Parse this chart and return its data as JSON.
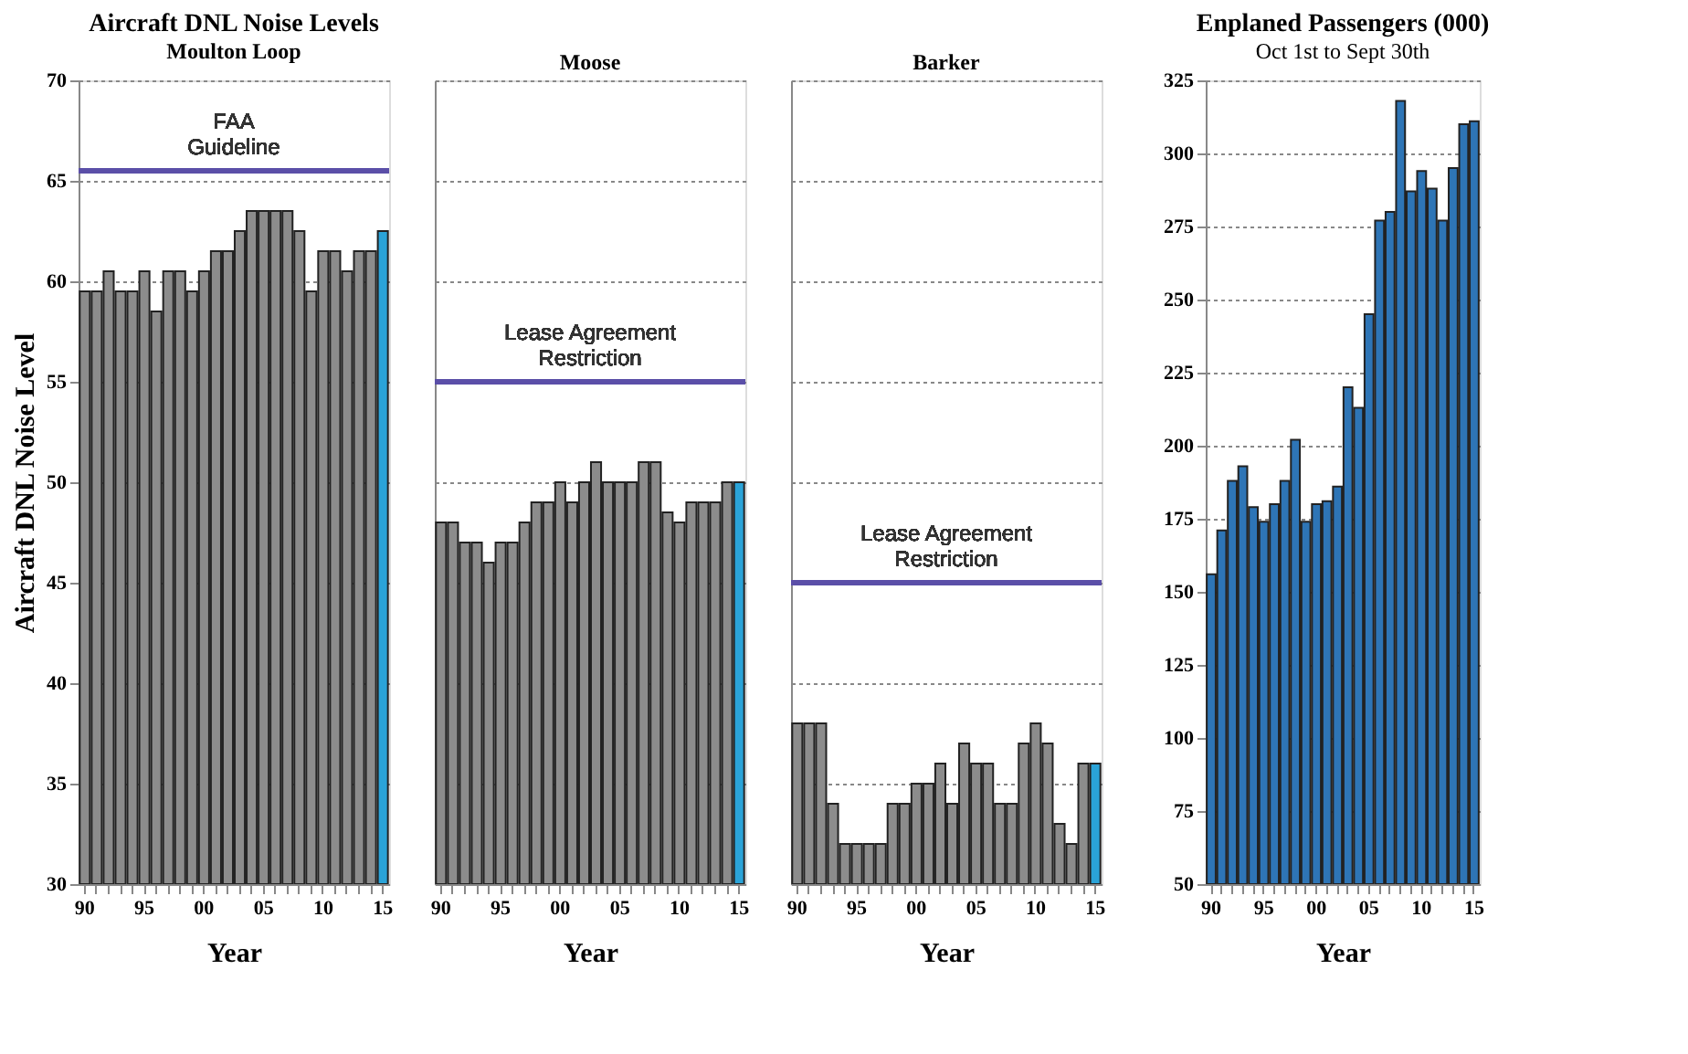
{
  "chart_data": [
    {
      "type": "bar",
      "title": "Aircraft DNL Noise Levels",
      "subtitle": "Moulton Loop",
      "xlabel": "Year",
      "ylabel": "Aircraft DNL Noise Level",
      "categories": [
        "90",
        null,
        null,
        null,
        null,
        "95",
        null,
        null,
        null,
        null,
        "00",
        null,
        null,
        null,
        null,
        "05",
        null,
        null,
        null,
        null,
        "10",
        null,
        null,
        null,
        null,
        "15"
      ],
      "values": [
        59.5,
        59.5,
        60.5,
        59.5,
        59.5,
        60.5,
        58.5,
        60.5,
        60.5,
        59.5,
        60.5,
        61.5,
        61.5,
        62.5,
        63.5,
        63.5,
        63.5,
        63.5,
        62.5,
        59.5,
        61.5,
        61.5,
        60.5,
        61.5,
        61.5,
        62.5
      ],
      "colors": [
        "#8c8c8c",
        "#8c8c8c",
        "#8c8c8c",
        "#8c8c8c",
        "#8c8c8c",
        "#8c8c8c",
        "#8c8c8c",
        "#8c8c8c",
        "#8c8c8c",
        "#8c8c8c",
        "#8c8c8c",
        "#8c8c8c",
        "#8c8c8c",
        "#8c8c8c",
        "#8c8c8c",
        "#8c8c8c",
        "#8c8c8c",
        "#8c8c8c",
        "#8c8c8c",
        "#8c8c8c",
        "#8c8c8c",
        "#8c8c8c",
        "#8c8c8c",
        "#8c8c8c",
        "#8c8c8c",
        "#2aa3d8"
      ],
      "ylim": [
        30,
        70
      ],
      "yticks": [
        30,
        35,
        40,
        45,
        50,
        55,
        60,
        65,
        70
      ],
      "grid": "y",
      "ref_lines": [
        {
          "axis": "y",
          "value": 65.5,
          "label": "FAA Guideline",
          "color": "#5b4fa8"
        }
      ]
    },
    {
      "type": "bar",
      "subtitle": "Moose",
      "xlabel": "Year",
      "categories": [
        "90",
        null,
        null,
        null,
        null,
        "95",
        null,
        null,
        null,
        null,
        "00",
        null,
        null,
        null,
        null,
        "05",
        null,
        null,
        null,
        null,
        "10",
        null,
        null,
        null,
        null,
        "15"
      ],
      "values": [
        48,
        48,
        47,
        47,
        46,
        47,
        47,
        48,
        49,
        49,
        50,
        49,
        50,
        51,
        50,
        50,
        50,
        51,
        51,
        48.5,
        48,
        49,
        49,
        49,
        50,
        50
      ],
      "colors": [
        "#8c8c8c",
        "#8c8c8c",
        "#8c8c8c",
        "#8c8c8c",
        "#8c8c8c",
        "#8c8c8c",
        "#8c8c8c",
        "#8c8c8c",
        "#8c8c8c",
        "#8c8c8c",
        "#8c8c8c",
        "#8c8c8c",
        "#8c8c8c",
        "#8c8c8c",
        "#8c8c8c",
        "#8c8c8c",
        "#8c8c8c",
        "#8c8c8c",
        "#8c8c8c",
        "#8c8c8c",
        "#8c8c8c",
        "#8c8c8c",
        "#8c8c8c",
        "#8c8c8c",
        "#8c8c8c",
        "#2aa3d8"
      ],
      "ylim": [
        30,
        70
      ],
      "yticks": [
        30,
        35,
        40,
        45,
        50,
        55,
        60,
        65,
        70
      ],
      "grid": "y",
      "tick_labels": "x",
      "ref_lines": [
        {
          "axis": "y",
          "value": 55,
          "label": "Lease Agreement Restriction",
          "color": "#5b4fa8"
        }
      ]
    },
    {
      "type": "bar",
      "subtitle": "Barker",
      "xlabel": "Year",
      "categories": [
        "90",
        null,
        null,
        null,
        null,
        "95",
        null,
        null,
        null,
        null,
        "00",
        null,
        null,
        null,
        null,
        "05",
        null,
        null,
        null,
        null,
        "10",
        null,
        null,
        null,
        null,
        "15"
      ],
      "values": [
        38,
        38,
        38,
        34,
        32,
        32,
        32,
        32,
        34,
        34,
        35,
        35,
        36,
        34,
        37,
        36,
        36,
        34,
        34,
        37,
        38,
        37,
        33,
        32,
        36,
        36
      ],
      "colors": [
        "#8c8c8c",
        "#8c8c8c",
        "#8c8c8c",
        "#8c8c8c",
        "#8c8c8c",
        "#8c8c8c",
        "#8c8c8c",
        "#8c8c8c",
        "#8c8c8c",
        "#8c8c8c",
        "#8c8c8c",
        "#8c8c8c",
        "#8c8c8c",
        "#8c8c8c",
        "#8c8c8c",
        "#8c8c8c",
        "#8c8c8c",
        "#8c8c8c",
        "#8c8c8c",
        "#8c8c8c",
        "#8c8c8c",
        "#8c8c8c",
        "#8c8c8c",
        "#8c8c8c",
        "#8c8c8c",
        "#2aa3d8"
      ],
      "ylim": [
        30,
        70
      ],
      "yticks": [
        30,
        35,
        40,
        45,
        50,
        55,
        60,
        65,
        70
      ],
      "grid": "y",
      "tick_labels": "x",
      "ref_lines": [
        {
          "axis": "y",
          "value": 45,
          "label": "Lease Agreement Restriction",
          "color": "#5b4fa8"
        }
      ]
    },
    {
      "type": "bar",
      "title": "Enplaned Passengers (000)",
      "subtitle": "Oct 1st to Sept 30th",
      "xlabel": "Year",
      "categories": [
        "90",
        null,
        null,
        null,
        null,
        "95",
        null,
        null,
        null,
        null,
        "00",
        null,
        null,
        null,
        null,
        "05",
        null,
        null,
        null,
        null,
        "10",
        null,
        null,
        null,
        null,
        "15"
      ],
      "values": [
        156,
        171,
        188,
        193,
        179,
        174,
        180,
        188,
        202,
        174,
        180,
        181,
        186,
        220,
        213,
        245,
        277,
        280,
        318,
        287,
        294,
        288,
        277,
        295,
        310,
        311
      ],
      "colors": [
        "#2e75b6",
        "#2e75b6",
        "#2e75b6",
        "#2e75b6",
        "#2e75b6",
        "#2e75b6",
        "#2e75b6",
        "#2e75b6",
        "#2e75b6",
        "#2e75b6",
        "#2e75b6",
        "#2e75b6",
        "#2e75b6",
        "#2e75b6",
        "#2e75b6",
        "#2e75b6",
        "#2e75b6",
        "#2e75b6",
        "#2e75b6",
        "#2e75b6",
        "#2e75b6",
        "#2e75b6",
        "#2e75b6",
        "#2e75b6",
        "#2e75b6",
        "#2e75b6"
      ],
      "ylim": [
        50,
        325
      ],
      "yticks": [
        50,
        75,
        100,
        125,
        150,
        175,
        200,
        225,
        250,
        275,
        300,
        325
      ],
      "grid": "y"
    }
  ]
}
